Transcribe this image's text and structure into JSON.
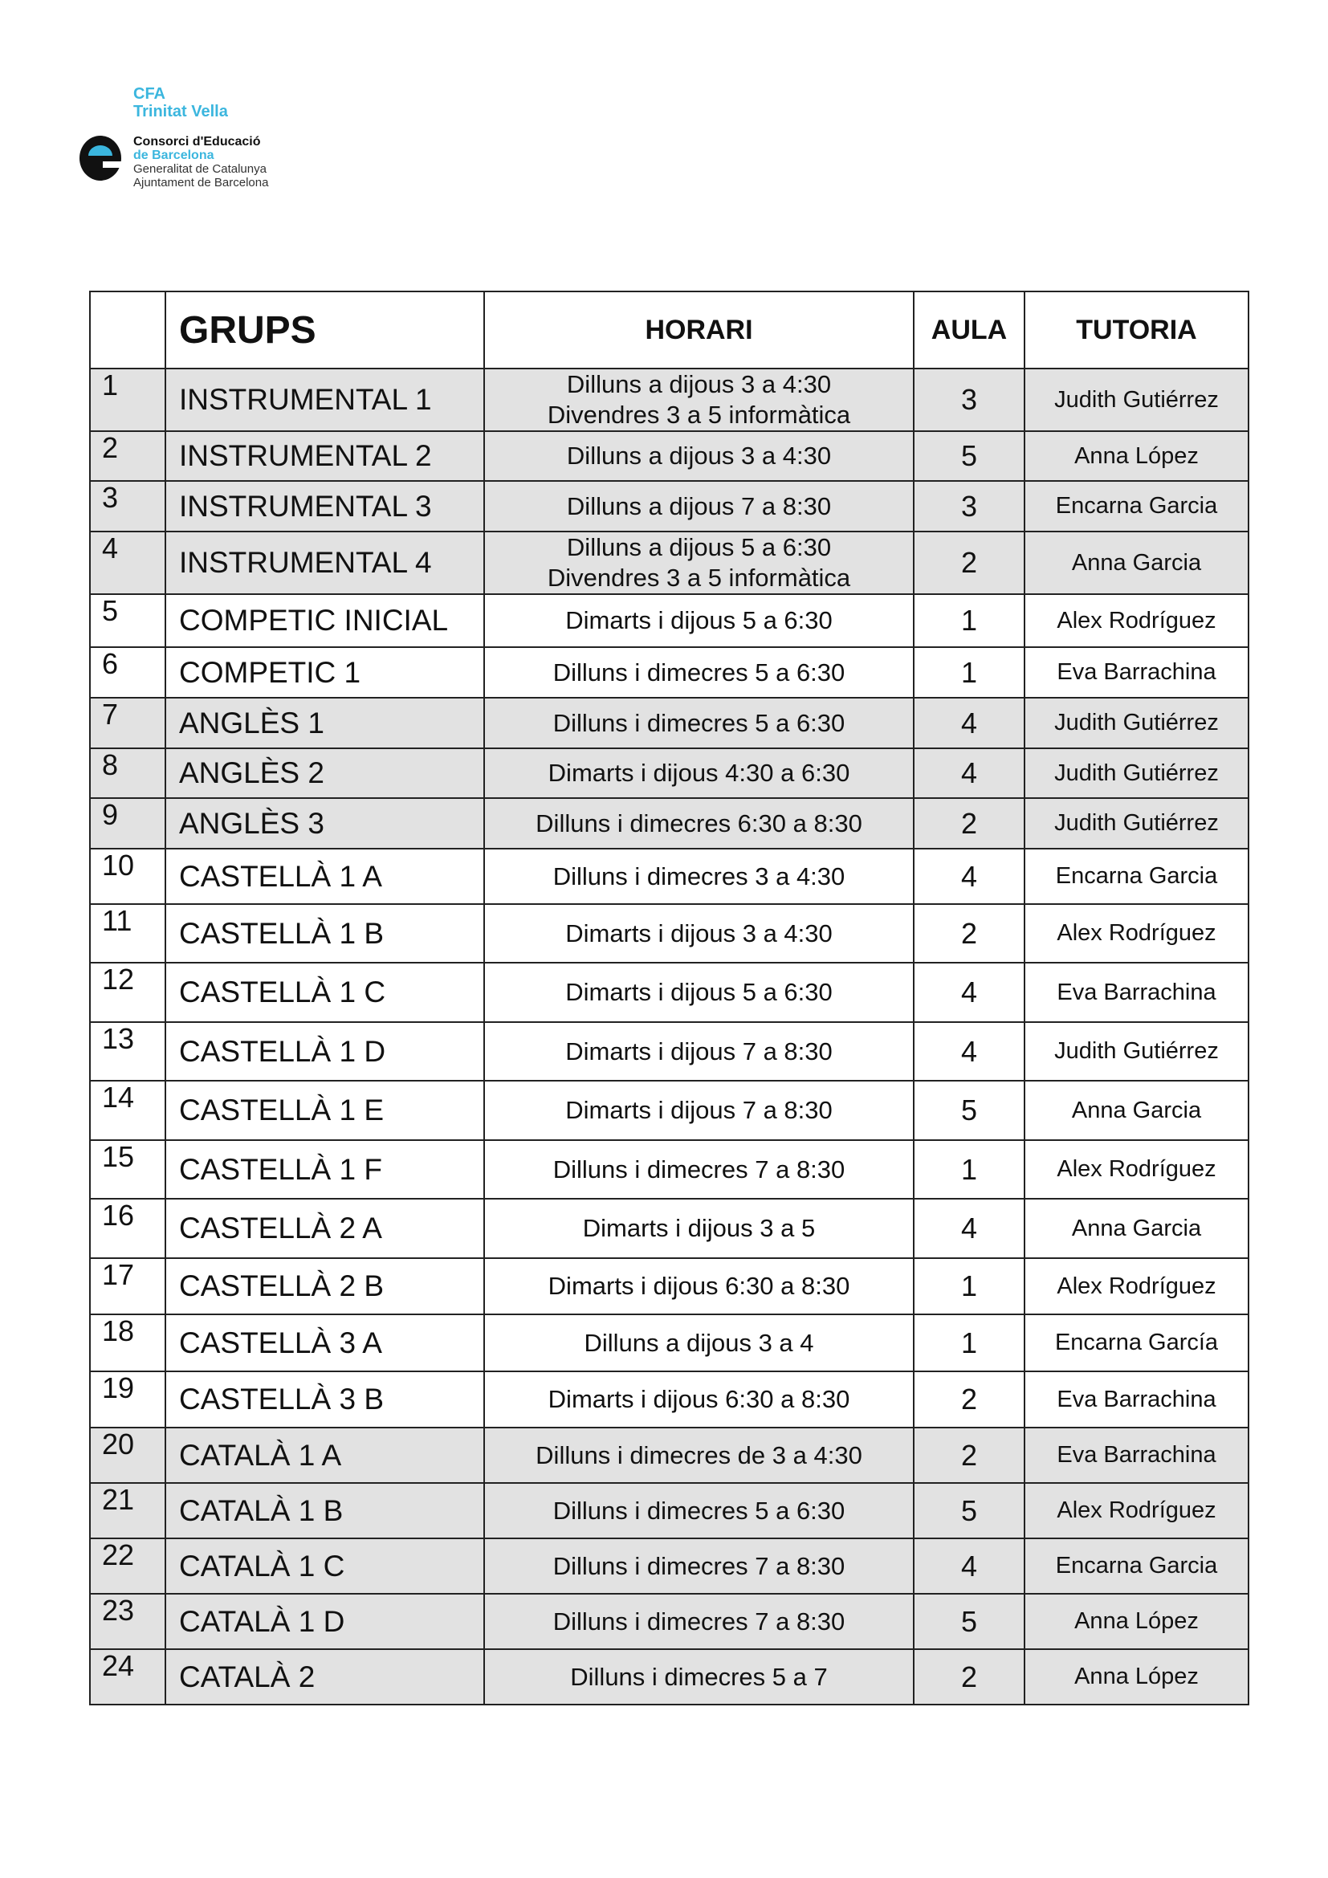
{
  "logo": {
    "line1": "CFA",
    "line2": "Trinitat Vella",
    "line3": "Consorci d'Educació",
    "line4": "de Barcelona",
    "line5": "Generalitat de Catalunya",
    "line6": "Ajuntament de Barcelona",
    "accent": "#3bb6de"
  },
  "table": {
    "headers": {
      "num": "",
      "grups": "GRUPS",
      "horari": "HORARI",
      "aula": "AULA",
      "tutoria": "TUTORIA"
    },
    "shade_color": "#e2e2e2",
    "rows": [
      {
        "num": "1",
        "grup": "INSTRUMENTAL 1",
        "horari": [
          "Dilluns a dijous 3 a 4:30",
          "Divendres 3 a 5 informàtica"
        ],
        "aula": "3",
        "tutoria": "Judith Gutiérrez",
        "shaded": true
      },
      {
        "num": "2",
        "grup": "INSTRUMENTAL 2",
        "horari": [
          "Dilluns a dijous 3 a 4:30"
        ],
        "aula": "5",
        "tutoria": "Anna López",
        "shaded": true
      },
      {
        "num": "3",
        "grup": "INSTRUMENTAL 3",
        "horari": [
          "Dilluns a dijous 7 a 8:30"
        ],
        "aula": "3",
        "tutoria": "Encarna Garcia",
        "shaded": true
      },
      {
        "num": "4",
        "grup": "INSTRUMENTAL 4",
        "horari": [
          "Dilluns a dijous 5 a 6:30",
          "Divendres 3 a 5 informàtica"
        ],
        "aula": "2",
        "tutoria": "Anna  Garcia",
        "shaded": true
      },
      {
        "num": "5",
        "grup": "COMPETIC  INICIAL",
        "horari": [
          "Dimarts i dijous 5 a 6:30"
        ],
        "aula": "1",
        "tutoria": "Alex  Rodríguez",
        "shaded": false
      },
      {
        "num": "6",
        "grup": "COMPETIC 1",
        "horari": [
          "Dilluns i dimecres 5 a 6:30"
        ],
        "aula": "1",
        "tutoria": "Eva Barrachina",
        "shaded": false
      },
      {
        "num": "7",
        "grup": "ANGLÈS 1",
        "horari": [
          "Dilluns i dimecres 5 a 6:30"
        ],
        "aula": "4",
        "tutoria": "Judith Gutiérrez",
        "shaded": true
      },
      {
        "num": "8",
        "grup": "ANGLÈS 2",
        "horari": [
          "Dimarts i dijous 4:30 a 6:30"
        ],
        "aula": "4",
        "tutoria": "Judith Gutiérrez",
        "shaded": true
      },
      {
        "num": "9",
        "grup": "ANGLÈS 3",
        "horari": [
          "Dilluns i dimecres 6:30 a 8:30"
        ],
        "aula": "2",
        "tutoria": "Judith Gutiérrez",
        "shaded": true
      },
      {
        "num": "10",
        "grup": "CASTELLÀ 1 A",
        "horari": [
          "Dilluns i dimecres 3 a 4:30"
        ],
        "aula": "4",
        "tutoria": "Encarna Garcia",
        "shaded": false
      },
      {
        "num": "11",
        "grup": "CASTELLÀ 1 B",
        "horari": [
          "Dimarts i dijous 3 a 4:30"
        ],
        "aula": "2",
        "tutoria": "Alex Rodríguez",
        "shaded": false
      },
      {
        "num": "12",
        "grup": "CASTELLÀ 1 C",
        "horari": [
          "Dimarts i dijous 5 a 6:30"
        ],
        "aula": "4",
        "tutoria": "Eva Barrachina",
        "shaded": false
      },
      {
        "num": "13",
        "grup": "CASTELLÀ 1 D",
        "horari": [
          "Dimarts i dijous 7 a 8:30"
        ],
        "aula": "4",
        "tutoria": "Judith Gutiérrez",
        "shaded": false
      },
      {
        "num": "14",
        "grup": "CASTELLÀ 1 E",
        "horari": [
          "Dimarts i dijous 7 a 8:30"
        ],
        "aula": "5",
        "tutoria": "Anna Garcia",
        "shaded": false
      },
      {
        "num": "15",
        "grup": "CASTELLÀ 1 F",
        "horari": [
          "Dilluns i dimecres 7 a 8:30"
        ],
        "aula": "1",
        "tutoria": "Alex Rodríguez",
        "shaded": false
      },
      {
        "num": "16",
        "grup": "CASTELLÀ 2 A",
        "horari": [
          "Dimarts i dijous 3 a 5"
        ],
        "aula": "4",
        "tutoria": "Anna Garcia",
        "shaded": false
      },
      {
        "num": "17",
        "grup": "CASTELLÀ 2 B",
        "horari": [
          "Dimarts i dijous 6:30 a 8:30"
        ],
        "aula": "1",
        "tutoria": "Alex Rodríguez",
        "shaded": false
      },
      {
        "num": "18",
        "grup": "CASTELLÀ 3 A",
        "horari": [
          "Dilluns a dijous 3 a 4"
        ],
        "aula": "1",
        "tutoria": "Encarna García",
        "shaded": false
      },
      {
        "num": "19",
        "grup": "CASTELLÀ 3 B",
        "horari": [
          "Dimarts i dijous 6:30 a 8:30"
        ],
        "aula": "2",
        "tutoria": "Eva Barrachina",
        "shaded": false
      },
      {
        "num": "20",
        "grup": "CATALÀ 1 A",
        "horari": [
          "Dilluns i dimecres de 3 a 4:30"
        ],
        "aula": "2",
        "tutoria": "Eva Barrachina",
        "shaded": true
      },
      {
        "num": "21",
        "grup": "CATALÀ 1 B",
        "horari": [
          "Dilluns i dimecres 5 a 6:30"
        ],
        "aula": "5",
        "tutoria": "Alex Rodríguez",
        "shaded": true
      },
      {
        "num": "22",
        "grup": "CATALÀ 1 C",
        "horari": [
          "Dilluns i dimecres 7 a 8:30"
        ],
        "aula": "4",
        "tutoria": "Encarna Garcia",
        "shaded": true
      },
      {
        "num": "23",
        "grup": "CATALÀ 1 D",
        "horari": [
          "Dilluns i dimecres 7 a 8:30"
        ],
        "aula": "5",
        "tutoria": "Anna López",
        "shaded": true
      },
      {
        "num": "24",
        "grup": "CATALÀ 2",
        "horari": [
          "Dilluns i dimecres 5 a 7"
        ],
        "aula": "2",
        "tutoria": "Anna López",
        "shaded": true
      }
    ]
  }
}
